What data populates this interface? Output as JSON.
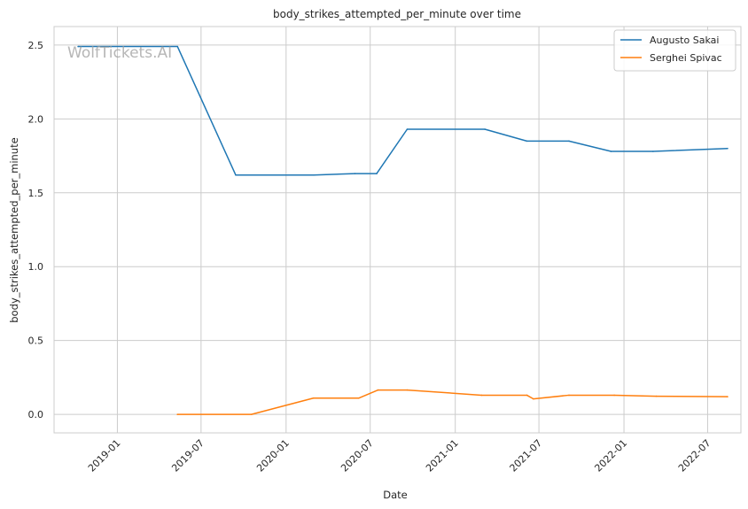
{
  "chart_data": {
    "type": "line",
    "title": "body_strikes_attempted_per_minute over time",
    "xlabel": "Date",
    "ylabel": "body_strikes_attempted_per_minute",
    "watermark": "WolfTickets.AI",
    "x_type": "date",
    "xlim": [
      "2018-08-17",
      "2022-09-11"
    ],
    "ylim": [
      -0.125,
      2.625
    ],
    "x_ticks": [
      {
        "date": "2019-01-01",
        "label": "2019-01"
      },
      {
        "date": "2019-07-01",
        "label": "2019-07"
      },
      {
        "date": "2020-01-01",
        "label": "2020-01"
      },
      {
        "date": "2020-07-01",
        "label": "2020-07"
      },
      {
        "date": "2021-01-01",
        "label": "2021-01"
      },
      {
        "date": "2021-07-01",
        "label": "2021-07"
      },
      {
        "date": "2022-01-01",
        "label": "2022-01"
      },
      {
        "date": "2022-07-01",
        "label": "2022-07"
      }
    ],
    "y_ticks": [
      {
        "value": 0.0,
        "label": "0.0"
      },
      {
        "value": 0.5,
        "label": "0.5"
      },
      {
        "value": 1.0,
        "label": "1.0"
      },
      {
        "value": 1.5,
        "label": "1.5"
      },
      {
        "value": 2.0,
        "label": "2.0"
      },
      {
        "value": 2.5,
        "label": "2.5"
      }
    ],
    "grid": true,
    "legend": "top-right",
    "series": [
      {
        "name": "Augusto Sakai",
        "color": "#1f77b4",
        "points": [
          {
            "x": "2018-10-08",
            "y": 2.49
          },
          {
            "x": "2019-05-11",
            "y": 2.49
          },
          {
            "x": "2019-09-14",
            "y": 1.62
          },
          {
            "x": "2020-03-01",
            "y": 1.62
          },
          {
            "x": "2020-05-29",
            "y": 1.63
          },
          {
            "x": "2020-07-15",
            "y": 1.63
          },
          {
            "x": "2020-09-19",
            "y": 1.93
          },
          {
            "x": "2021-03-06",
            "y": 1.93
          },
          {
            "x": "2021-06-05",
            "y": 1.85
          },
          {
            "x": "2021-09-04",
            "y": 1.85
          },
          {
            "x": "2021-12-04",
            "y": 1.78
          },
          {
            "x": "2022-03-05",
            "y": 1.78
          },
          {
            "x": "2022-08-13",
            "y": 1.8
          }
        ]
      },
      {
        "name": "Serghei Spivac",
        "color": "#ff7f0e",
        "points": [
          {
            "x": "2019-05-11",
            "y": 0.0
          },
          {
            "x": "2019-10-18",
            "y": 0.0
          },
          {
            "x": "2020-02-29",
            "y": 0.11
          },
          {
            "x": "2020-06-06",
            "y": 0.11
          },
          {
            "x": "2020-07-18",
            "y": 0.165
          },
          {
            "x": "2020-09-19",
            "y": 0.165
          },
          {
            "x": "2021-02-27",
            "y": 0.13
          },
          {
            "x": "2021-06-05",
            "y": 0.13
          },
          {
            "x": "2021-06-19",
            "y": 0.105
          },
          {
            "x": "2021-09-04",
            "y": 0.13
          },
          {
            "x": "2021-12-11",
            "y": 0.13
          },
          {
            "x": "2022-03-12",
            "y": 0.123
          },
          {
            "x": "2022-08-13",
            "y": 0.12
          }
        ]
      }
    ]
  }
}
